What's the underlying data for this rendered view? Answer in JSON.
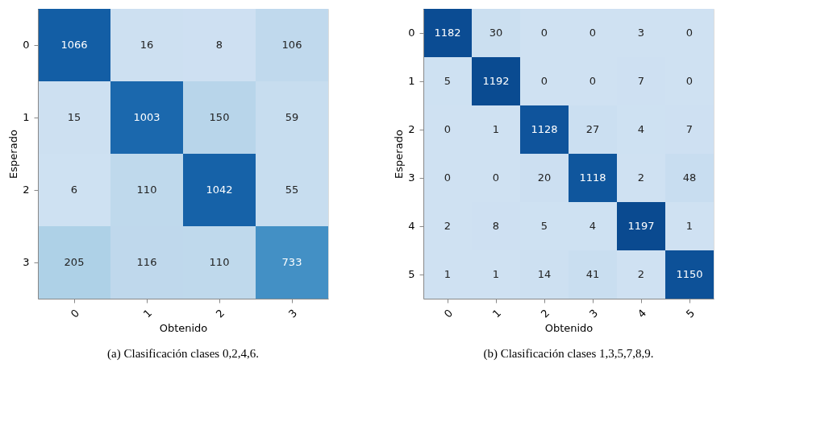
{
  "chart_data": [
    {
      "type": "heatmap",
      "categories": [
        "0",
        "1",
        "2",
        "3"
      ],
      "y_categories": [
        "0",
        "1",
        "2",
        "3"
      ],
      "xlabel": "Obtenido",
      "ylabel": "Esperado",
      "data_labels": true,
      "cells": [
        [
          1066,
          16,
          8,
          106
        ],
        [
          15,
          1003,
          150,
          59
        ],
        [
          6,
          110,
          1042,
          55
        ],
        [
          205,
          116,
          110,
          733
        ]
      ],
      "annotations": [
        "(a) Clasificación clases 0,2,4,6."
      ]
    },
    {
      "type": "heatmap",
      "categories": [
        "0",
        "1",
        "2",
        "3",
        "4",
        "5"
      ],
      "y_categories": [
        "0",
        "1",
        "2",
        "3",
        "4",
        "5"
      ],
      "xlabel": "Obtenido",
      "ylabel": "Esperado",
      "data_labels": true,
      "cells": [
        [
          1182,
          30,
          0,
          0,
          3,
          0
        ],
        [
          5,
          1192,
          0,
          0,
          7,
          0
        ],
        [
          0,
          1,
          1128,
          27,
          4,
          7
        ],
        [
          0,
          0,
          20,
          1118,
          2,
          48
        ],
        [
          2,
          8,
          5,
          4,
          1197,
          1
        ],
        [
          1,
          1,
          14,
          41,
          2,
          1150
        ]
      ],
      "annotations": [
        "(b) Clasificación clases 1,3,5,7,8,9."
      ]
    }
  ]
}
